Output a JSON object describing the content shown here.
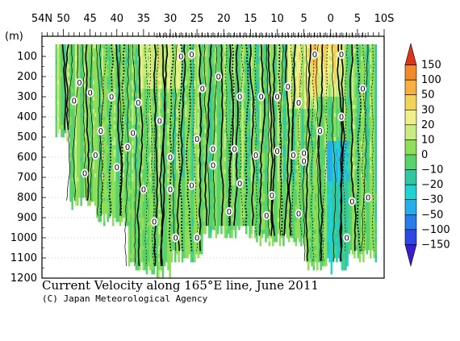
{
  "chart_data": {
    "type": "heatmap",
    "title": "Current Velocity along 165°E line, June 2011",
    "credit": "(C) Japan Meteorological Agency",
    "y_unit_label": "(m)",
    "x_ticks": [
      "54N",
      "50",
      "45",
      "40",
      "35",
      "30",
      "25",
      "20",
      "15",
      "10",
      "5",
      "0",
      "5",
      "10S"
    ],
    "y_ticks": [
      "100",
      "200",
      "300",
      "400",
      "500",
      "600",
      "700",
      "800",
      "900",
      "1000",
      "1100",
      "1200"
    ],
    "xlim_lat": [
      54,
      -10
    ],
    "ylim_depth": [
      0,
      1200
    ],
    "colorbar": {
      "levels": [
        "150",
        "100",
        "50",
        "30",
        "20",
        "10",
        "0",
        "−10",
        "−20",
        "−30",
        "−50",
        "−100",
        "−150"
      ],
      "colors": [
        "#d9361a",
        "#f08a2a",
        "#f5b040",
        "#f2d35a",
        "#eef08a",
        "#c8ec80",
        "#8ede5a",
        "#58d26a",
        "#30c8a0",
        "#22d2d2",
        "#26aee8",
        "#2a7cea",
        "#2d48e6",
        "#3a1fc8"
      ]
    },
    "contour_zero_labels": "0",
    "grid": true
  }
}
